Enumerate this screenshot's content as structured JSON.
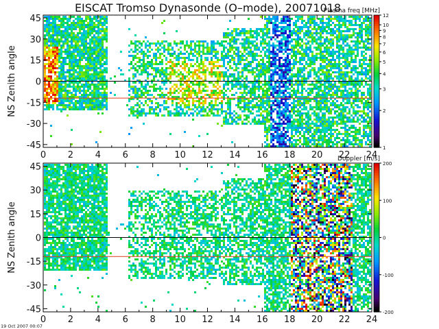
{
  "page": {
    "title": "EISCAT Tromso Dynasonde (O–mode),  20071018",
    "footer_stamp": "19 Oct 2007 00:07"
  },
  "chart_data": [
    {
      "type": "heatmap",
      "panel": "top",
      "title": "EISCAT Tromso Dynasonde (O–mode),  20071018",
      "xlabel": "",
      "ylabel": "NS Zenith angle",
      "xlim": [
        0,
        24
      ],
      "ylim": [
        -47,
        47
      ],
      "xticks": [
        0,
        2,
        4,
        6,
        8,
        10,
        12,
        14,
        16,
        18,
        20,
        22,
        24
      ],
      "yticks": [
        45,
        30,
        15,
        0,
        -15,
        -30,
        -45
      ],
      "colorbar": {
        "label": "Plasma freq [MHz]",
        "scale": "log",
        "range": [
          1,
          12
        ],
        "ticks": [
          12,
          10,
          9,
          8,
          7,
          6,
          5,
          4,
          3,
          2,
          1
        ]
      },
      "reference_lines": [
        {
          "y": 0,
          "color": "#000000"
        },
        {
          "y": -12,
          "color": "#e03a1e"
        }
      ],
      "grid": false
    },
    {
      "type": "heatmap",
      "panel": "bottom",
      "xlabel": "",
      "ylabel": "NS Zenith angle",
      "xlim": [
        0,
        24
      ],
      "ylim": [
        -47,
        47
      ],
      "xticks": [
        0,
        2,
        4,
        6,
        8,
        10,
        12,
        14,
        16,
        18,
        20,
        22,
        24
      ],
      "yticks": [
        45,
        30,
        15,
        0,
        -15,
        -30,
        -45
      ],
      "colorbar": {
        "label": "Doppler [m/s]",
        "scale": "linear",
        "range": [
          -200,
          200
        ],
        "ticks": [
          200,
          100,
          0,
          -100,
          -200
        ]
      },
      "reference_lines": [
        {
          "y": 0,
          "color": "#000000"
        },
        {
          "y": -12,
          "color": "#e03a1e"
        }
      ],
      "grid": false
    }
  ]
}
